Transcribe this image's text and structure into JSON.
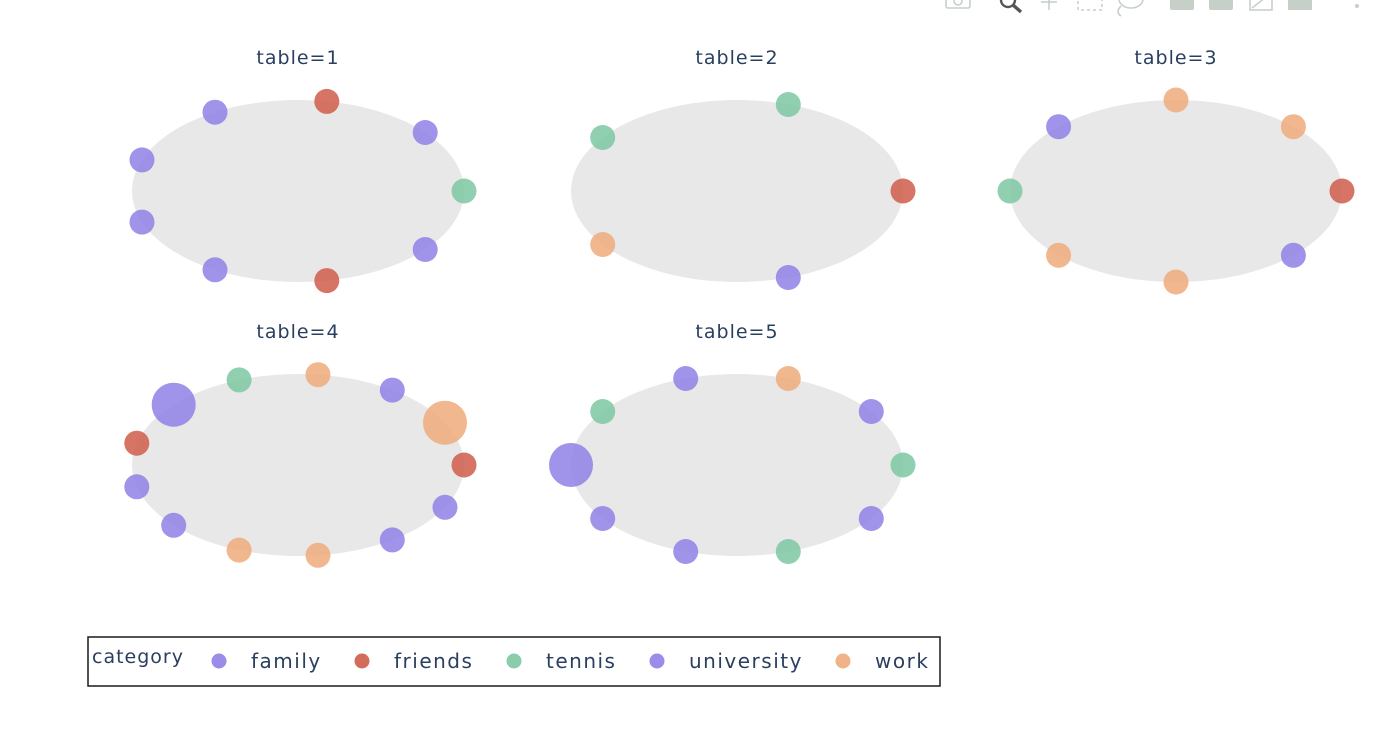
{
  "chart_data": {
    "type": "scatter",
    "facet_label": "table",
    "legend_title": "category",
    "categories": [
      {
        "name": "family",
        "color": "#8f80e6"
      },
      {
        "name": "friends",
        "color": "#cf5c4a"
      },
      {
        "name": "tennis",
        "color": "#7cc8a3"
      },
      {
        "name": "university",
        "color": "#8f80e6"
      },
      {
        "name": "work",
        "color": "#eeaa7b"
      }
    ],
    "panels": [
      {
        "title": "table=1",
        "seats": [
          {
            "category": "tennis",
            "size": 1
          },
          {
            "category": "family",
            "size": 1
          },
          {
            "category": "friends",
            "size": 1
          },
          {
            "category": "university",
            "size": 1
          },
          {
            "category": "university",
            "size": 1
          },
          {
            "category": "university",
            "size": 1
          },
          {
            "category": "university",
            "size": 1
          },
          {
            "category": "friends",
            "size": 1
          },
          {
            "category": "university",
            "size": 1
          }
        ]
      },
      {
        "title": "table=2",
        "seats": [
          {
            "category": "friends",
            "size": 1
          },
          {
            "category": "tennis",
            "size": 1
          },
          {
            "category": "tennis",
            "size": 1
          },
          {
            "category": "work",
            "size": 1
          },
          {
            "category": "university",
            "size": 1
          }
        ]
      },
      {
        "title": "table=3",
        "seats": [
          {
            "category": "friends",
            "size": 1
          },
          {
            "category": "work",
            "size": 1
          },
          {
            "category": "work",
            "size": 1
          },
          {
            "category": "university",
            "size": 1
          },
          {
            "category": "tennis",
            "size": 1
          },
          {
            "category": "work",
            "size": 1
          },
          {
            "category": "work",
            "size": 1
          },
          {
            "category": "university",
            "size": 1
          }
        ]
      },
      {
        "title": "table=4",
        "seats": [
          {
            "category": "friends",
            "size": 1
          },
          {
            "category": "work",
            "size": 2
          },
          {
            "category": "university",
            "size": 1
          },
          {
            "category": "work",
            "size": 1
          },
          {
            "category": "tennis",
            "size": 1
          },
          {
            "category": "university",
            "size": 2
          },
          {
            "category": "friends",
            "size": 1
          },
          {
            "category": "university",
            "size": 1
          },
          {
            "category": "university",
            "size": 1
          },
          {
            "category": "work",
            "size": 1
          },
          {
            "category": "work",
            "size": 1
          },
          {
            "category": "university",
            "size": 1
          },
          {
            "category": "university",
            "size": 1
          }
        ]
      },
      {
        "title": "table=5",
        "seats": [
          {
            "category": "tennis",
            "size": 1
          },
          {
            "category": "university",
            "size": 1
          },
          {
            "category": "work",
            "size": 1
          },
          {
            "category": "university",
            "size": 1
          },
          {
            "category": "tennis",
            "size": 1
          },
          {
            "category": "university",
            "size": 2
          },
          {
            "category": "university",
            "size": 1
          },
          {
            "category": "university",
            "size": 1
          },
          {
            "category": "tennis",
            "size": 1
          },
          {
            "category": "university",
            "size": 1
          }
        ]
      }
    ],
    "table_color": "#e8e8e8",
    "grid": false,
    "legend_position": "bottom-left"
  },
  "toolbar": {
    "icons": [
      "camera-icon",
      "zoom-icon",
      "pan-icon",
      "box-select-icon",
      "lasso-icon",
      "zoom-in-icon",
      "zoom-out-icon",
      "autoscale-icon",
      "home-icon",
      "more-icon"
    ]
  }
}
